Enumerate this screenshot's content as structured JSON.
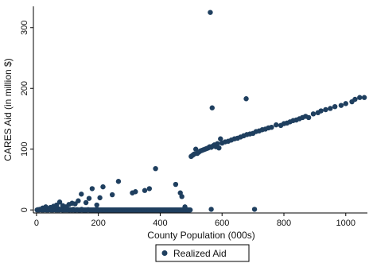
{
  "chart_data": {
    "type": "scatter",
    "xlabel": "County Population (000s)",
    "ylabel": "CARES Aid (in million $)",
    "xlim": [
      -10,
      1070
    ],
    "ylim": [
      -5,
      335
    ],
    "x_ticks": [
      0,
      200,
      400,
      600,
      800,
      1000
    ],
    "y_ticks": [
      0,
      100,
      200,
      300
    ],
    "grid": false,
    "legend": "bottom-center",
    "colors": {
      "marker": "#1f3f5f",
      "axis": "#000000",
      "background": "#ffffff"
    },
    "series": [
      {
        "name": "Realized Aid",
        "points": [
          [
            2,
            0
          ],
          [
            5,
            0.5
          ],
          [
            8,
            0
          ],
          [
            11,
            1
          ],
          [
            14,
            0.5
          ],
          [
            17,
            0
          ],
          [
            20,
            1.5
          ],
          [
            23,
            0
          ],
          [
            26,
            2
          ],
          [
            29,
            0.5
          ],
          [
            32,
            0
          ],
          [
            35,
            1
          ],
          [
            38,
            0
          ],
          [
            41,
            0.5
          ],
          [
            44,
            2
          ],
          [
            47,
            0
          ],
          [
            50,
            1
          ],
          [
            53,
            0
          ],
          [
            56,
            3
          ],
          [
            59,
            0.5
          ],
          [
            62,
            0
          ],
          [
            65,
            1
          ],
          [
            68,
            0
          ],
          [
            71,
            2
          ],
          [
            74,
            0
          ],
          [
            77,
            0.5
          ],
          [
            80,
            1
          ],
          [
            83,
            0
          ],
          [
            86,
            0
          ],
          [
            89,
            1.5
          ],
          [
            92,
            0
          ],
          [
            95,
            0.5
          ],
          [
            98,
            0
          ],
          [
            101,
            1
          ],
          [
            104,
            0
          ],
          [
            107,
            0
          ],
          [
            110,
            0.5
          ],
          [
            113,
            0
          ],
          [
            116,
            0
          ],
          [
            119,
            1
          ],
          [
            122,
            0
          ],
          [
            125,
            0
          ],
          [
            128,
            0
          ],
          [
            131,
            0.5
          ],
          [
            134,
            0
          ],
          [
            137,
            0
          ],
          [
            140,
            0
          ],
          [
            143,
            0
          ],
          [
            146,
            1
          ],
          [
            149,
            0
          ],
          [
            152,
            0
          ],
          [
            155,
            0
          ],
          [
            158,
            0
          ],
          [
            161,
            0
          ],
          [
            164,
            0
          ],
          [
            167,
            0.5
          ],
          [
            170,
            0
          ],
          [
            173,
            0
          ],
          [
            176,
            0
          ],
          [
            179,
            0
          ],
          [
            182,
            0
          ],
          [
            185,
            0
          ],
          [
            188,
            0
          ],
          [
            191,
            0
          ],
          [
            194,
            0
          ],
          [
            197,
            0
          ],
          [
            200,
            0
          ],
          [
            203,
            0
          ],
          [
            206,
            0
          ],
          [
            209,
            0
          ],
          [
            212,
            0
          ],
          [
            215,
            0
          ],
          [
            218,
            0
          ],
          [
            221,
            0
          ],
          [
            224,
            0
          ],
          [
            227,
            0
          ],
          [
            230,
            0
          ],
          [
            233,
            0
          ],
          [
            236,
            0
          ],
          [
            239,
            0
          ],
          [
            242,
            0
          ],
          [
            245,
            0
          ],
          [
            248,
            0
          ],
          [
            251,
            0
          ],
          [
            254,
            0
          ],
          [
            257,
            0
          ],
          [
            260,
            0
          ],
          [
            263,
            0
          ],
          [
            266,
            0
          ],
          [
            269,
            0
          ],
          [
            272,
            0
          ],
          [
            275,
            0
          ],
          [
            278,
            0
          ],
          [
            281,
            0
          ],
          [
            284,
            0
          ],
          [
            287,
            0
          ],
          [
            290,
            0
          ],
          [
            293,
            0
          ],
          [
            296,
            0
          ],
          [
            299,
            0
          ],
          [
            302,
            0
          ],
          [
            305,
            0
          ],
          [
            308,
            0
          ],
          [
            311,
            0
          ],
          [
            314,
            0
          ],
          [
            317,
            0
          ],
          [
            320,
            0
          ],
          [
            323,
            0
          ],
          [
            326,
            0
          ],
          [
            329,
            0
          ],
          [
            332,
            0
          ],
          [
            335,
            0
          ],
          [
            338,
            0
          ],
          [
            341,
            0
          ],
          [
            344,
            0
          ],
          [
            347,
            0
          ],
          [
            350,
            0
          ],
          [
            353,
            0
          ],
          [
            356,
            0
          ],
          [
            359,
            0
          ],
          [
            362,
            0
          ],
          [
            365,
            0
          ],
          [
            368,
            0
          ],
          [
            371,
            0
          ],
          [
            374,
            0
          ],
          [
            377,
            0
          ],
          [
            380,
            0
          ],
          [
            383,
            0
          ],
          [
            386,
            0
          ],
          [
            389,
            0
          ],
          [
            392,
            0
          ],
          [
            395,
            0
          ],
          [
            398,
            0
          ],
          [
            401,
            0
          ],
          [
            404,
            0
          ],
          [
            407,
            0
          ],
          [
            410,
            0
          ],
          [
            413,
            0
          ],
          [
            416,
            0
          ],
          [
            419,
            0
          ],
          [
            422,
            0
          ],
          [
            425,
            0
          ],
          [
            428,
            0
          ],
          [
            431,
            0
          ],
          [
            434,
            0
          ],
          [
            437,
            0
          ],
          [
            440,
            0
          ],
          [
            443,
            0
          ],
          [
            446,
            0
          ],
          [
            449,
            0
          ],
          [
            452,
            0
          ],
          [
            455,
            0
          ],
          [
            458,
            0
          ],
          [
            461,
            0
          ],
          [
            464,
            0
          ],
          [
            467,
            0
          ],
          [
            470,
            0
          ],
          [
            473,
            0
          ],
          [
            476,
            0
          ],
          [
            479,
            0
          ],
          [
            482,
            0
          ],
          [
            485,
            0
          ],
          [
            488,
            0
          ],
          [
            491,
            0
          ],
          [
            494,
            0
          ],
          [
            497,
            0
          ],
          [
            20,
            3
          ],
          [
            30,
            5
          ],
          [
            45,
            4
          ],
          [
            55,
            6
          ],
          [
            65,
            8
          ],
          [
            75,
            13
          ],
          [
            85,
            7
          ],
          [
            95,
            5
          ],
          [
            105,
            9
          ],
          [
            115,
            11
          ],
          [
            125,
            10
          ],
          [
            135,
            15
          ],
          [
            145,
            26
          ],
          [
            160,
            12
          ],
          [
            170,
            19
          ],
          [
            180,
            35
          ],
          [
            195,
            8
          ],
          [
            205,
            20
          ],
          [
            215,
            38
          ],
          [
            245,
            25
          ],
          [
            265,
            47
          ],
          [
            310,
            28
          ],
          [
            320,
            30
          ],
          [
            350,
            32
          ],
          [
            365,
            35
          ],
          [
            385,
            68
          ],
          [
            450,
            42
          ],
          [
            465,
            28
          ],
          [
            470,
            22
          ],
          [
            480,
            5
          ],
          [
            500,
            88
          ],
          [
            505,
            90
          ],
          [
            510,
            92
          ],
          [
            515,
            100
          ],
          [
            520,
            93
          ],
          [
            525,
            95
          ],
          [
            530,
            97
          ],
          [
            535,
            98
          ],
          [
            540,
            99
          ],
          [
            545,
            100
          ],
          [
            550,
            101
          ],
          [
            555,
            102
          ],
          [
            560,
            104
          ],
          [
            565,
            103
          ],
          [
            570,
            105
          ],
          [
            575,
            107
          ],
          [
            580,
            104
          ],
          [
            585,
            109
          ],
          [
            590,
            102
          ],
          [
            595,
            117
          ],
          [
            600,
            110
          ],
          [
            610,
            112
          ],
          [
            620,
            113
          ],
          [
            630,
            115
          ],
          [
            640,
            117
          ],
          [
            650,
            118
          ],
          [
            660,
            120
          ],
          [
            670,
            122
          ],
          [
            680,
            124
          ],
          [
            690,
            125
          ],
          [
            700,
            126
          ],
          [
            710,
            129
          ],
          [
            720,
            130
          ],
          [
            730,
            132
          ],
          [
            740,
            133
          ],
          [
            750,
            135
          ],
          [
            760,
            136
          ],
          [
            775,
            140
          ],
          [
            790,
            139
          ],
          [
            800,
            142
          ],
          [
            810,
            143
          ],
          [
            820,
            145
          ],
          [
            830,
            147
          ],
          [
            840,
            148
          ],
          [
            850,
            150
          ],
          [
            860,
            152
          ],
          [
            870,
            154
          ],
          [
            880,
            152
          ],
          [
            895,
            158
          ],
          [
            910,
            160
          ],
          [
            920,
            163
          ],
          [
            935,
            165
          ],
          [
            950,
            167
          ],
          [
            965,
            170
          ],
          [
            985,
            172
          ],
          [
            1000,
            175
          ],
          [
            1020,
            178
          ],
          [
            1030,
            182
          ],
          [
            1045,
            185
          ],
          [
            1060,
            185
          ],
          [
            562,
            325
          ],
          [
            568,
            168
          ],
          [
            678,
            183
          ],
          [
            565,
            1
          ],
          [
            705,
            1
          ]
        ]
      }
    ]
  }
}
